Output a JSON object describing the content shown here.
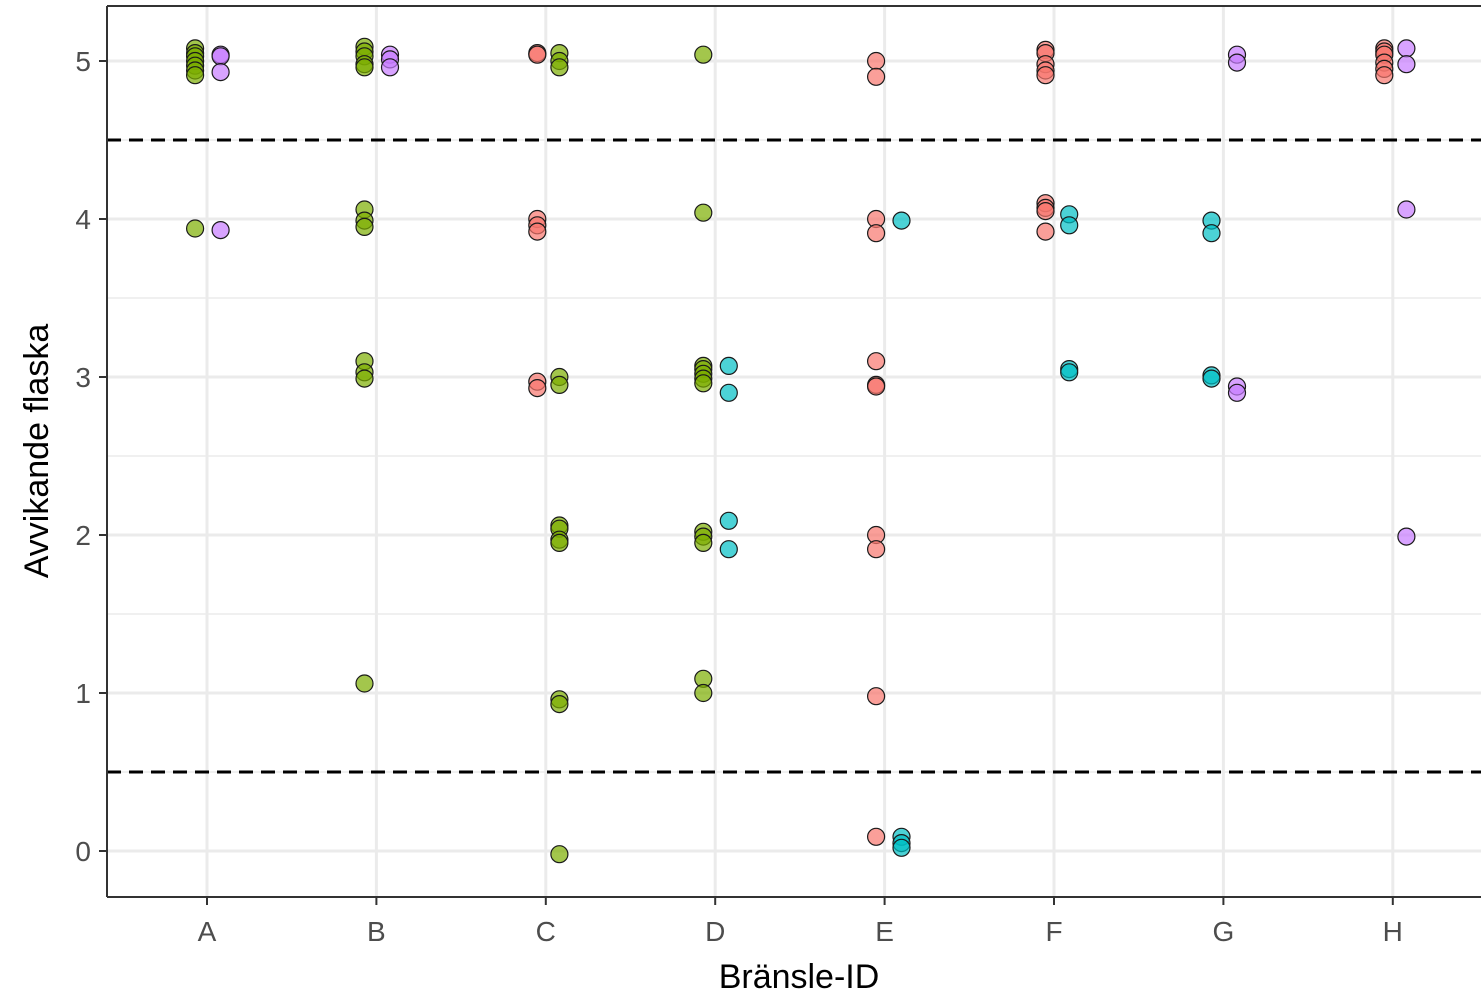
{
  "chart_data": {
    "type": "scatter",
    "title": "",
    "xlabel": "Bränsle-ID",
    "ylabel": "Avvikande flaska",
    "categories": [
      "A",
      "B",
      "C",
      "D",
      "E",
      "F",
      "G",
      "H"
    ],
    "ylim": [
      -0.28,
      5.36
    ],
    "y_ticks": [
      0,
      1,
      2,
      3,
      4,
      5
    ],
    "y_tick_labels": [
      "0",
      "1",
      "2",
      "3",
      "4",
      "5"
    ],
    "grid": true,
    "legend": "none",
    "reference_lines": [
      {
        "y": 4.5,
        "style": "dashed",
        "color": "#000000"
      },
      {
        "y": 0.5,
        "style": "dashed",
        "color": "#000000"
      }
    ],
    "colors": {
      "red": "#F8766D",
      "green": "#7CAE00",
      "cyan": "#00BFC4",
      "purple": "#C77CFF"
    },
    "series": [
      {
        "color_key": "red",
        "points": [
          [
            "C",
            -0.05,
            5.05
          ],
          [
            "C",
            -0.05,
            5.04
          ],
          [
            "C",
            -0.05,
            4.0
          ],
          [
            "C",
            -0.05,
            3.96
          ],
          [
            "C",
            -0.05,
            3.92
          ],
          [
            "C",
            -0.05,
            2.97
          ],
          [
            "C",
            -0.05,
            2.93
          ],
          [
            "E",
            -0.05,
            5.0
          ],
          [
            "E",
            -0.05,
            4.9
          ],
          [
            "E",
            -0.05,
            4.0
          ],
          [
            "E",
            -0.05,
            3.91
          ],
          [
            "E",
            -0.05,
            3.1
          ],
          [
            "E",
            -0.05,
            2.95
          ],
          [
            "E",
            -0.05,
            2.94
          ],
          [
            "E",
            -0.05,
            2.0
          ],
          [
            "E",
            -0.05,
            1.91
          ],
          [
            "E",
            -0.05,
            0.98
          ],
          [
            "E",
            -0.05,
            0.09
          ],
          [
            "F",
            -0.05,
            5.07
          ],
          [
            "F",
            -0.05,
            5.05
          ],
          [
            "F",
            -0.05,
            4.98
          ],
          [
            "F",
            -0.05,
            4.94
          ],
          [
            "F",
            -0.05,
            4.91
          ],
          [
            "F",
            -0.05,
            4.1
          ],
          [
            "F",
            -0.05,
            4.07
          ],
          [
            "F",
            -0.05,
            4.05
          ],
          [
            "F",
            -0.05,
            3.92
          ],
          [
            "H",
            -0.05,
            5.08
          ],
          [
            "H",
            -0.05,
            5.06
          ],
          [
            "H",
            -0.05,
            5.04
          ],
          [
            "H",
            -0.05,
            4.99
          ],
          [
            "H",
            -0.05,
            4.95
          ],
          [
            "H",
            -0.05,
            4.91
          ]
        ]
      },
      {
        "color_key": "green",
        "points": [
          [
            "A",
            -0.07,
            5.08
          ],
          [
            "A",
            -0.07,
            5.05
          ],
          [
            "A",
            -0.07,
            5.03
          ],
          [
            "A",
            -0.07,
            5.0
          ],
          [
            "A",
            -0.07,
            4.97
          ],
          [
            "A",
            -0.07,
            4.94
          ],
          [
            "A",
            -0.07,
            4.91
          ],
          [
            "A",
            -0.07,
            3.94
          ],
          [
            "B",
            -0.07,
            5.09
          ],
          [
            "B",
            -0.07,
            5.06
          ],
          [
            "B",
            -0.07,
            5.03
          ],
          [
            "B",
            -0.07,
            4.98
          ],
          [
            "B",
            -0.07,
            4.96
          ],
          [
            "B",
            -0.07,
            4.06
          ],
          [
            "B",
            -0.07,
            3.99
          ],
          [
            "B",
            -0.07,
            3.95
          ],
          [
            "B",
            -0.07,
            3.1
          ],
          [
            "B",
            -0.07,
            3.03
          ],
          [
            "B",
            -0.07,
            2.99
          ],
          [
            "B",
            -0.07,
            1.06
          ],
          [
            "C",
            0.08,
            5.05
          ],
          [
            "C",
            0.08,
            5.0
          ],
          [
            "C",
            0.08,
            4.96
          ],
          [
            "C",
            0.08,
            3.0
          ],
          [
            "C",
            0.08,
            2.95
          ],
          [
            "C",
            0.08,
            2.06
          ],
          [
            "C",
            0.08,
            2.04
          ],
          [
            "C",
            0.08,
            1.97
          ],
          [
            "C",
            0.08,
            1.95
          ],
          [
            "C",
            0.08,
            0.96
          ],
          [
            "C",
            0.08,
            0.93
          ],
          [
            "C",
            0.08,
            -0.02
          ],
          [
            "D",
            -0.07,
            5.04
          ],
          [
            "D",
            -0.07,
            4.04
          ],
          [
            "D",
            -0.07,
            3.07
          ],
          [
            "D",
            -0.07,
            3.05
          ],
          [
            "D",
            -0.07,
            3.02
          ],
          [
            "D",
            -0.07,
            2.99
          ],
          [
            "D",
            -0.07,
            2.96
          ],
          [
            "D",
            -0.07,
            2.02
          ],
          [
            "D",
            -0.07,
            1.99
          ],
          [
            "D",
            -0.07,
            1.95
          ],
          [
            "D",
            -0.07,
            1.09
          ],
          [
            "D",
            -0.07,
            1.0
          ]
        ]
      },
      {
        "color_key": "cyan",
        "points": [
          [
            "D",
            0.08,
            3.07
          ],
          [
            "D",
            0.08,
            2.9
          ],
          [
            "D",
            0.08,
            2.09
          ],
          [
            "D",
            0.08,
            1.91
          ],
          [
            "E",
            0.1,
            3.99
          ],
          [
            "E",
            0.1,
            0.09
          ],
          [
            "E",
            0.1,
            0.05
          ],
          [
            "E",
            0.1,
            0.02
          ],
          [
            "F",
            0.09,
            4.03
          ],
          [
            "F",
            0.09,
            3.96
          ],
          [
            "F",
            0.09,
            3.05
          ],
          [
            "F",
            0.09,
            3.03
          ],
          [
            "G",
            -0.07,
            3.99
          ],
          [
            "G",
            -0.07,
            3.91
          ],
          [
            "G",
            -0.07,
            3.01
          ],
          [
            "G",
            -0.07,
            2.99
          ]
        ]
      },
      {
        "color_key": "purple",
        "points": [
          [
            "A",
            0.08,
            5.04
          ],
          [
            "A",
            0.08,
            5.03
          ],
          [
            "A",
            0.08,
            4.93
          ],
          [
            "A",
            0.08,
            3.93
          ],
          [
            "B",
            0.08,
            5.04
          ],
          [
            "B",
            0.08,
            5.01
          ],
          [
            "B",
            0.08,
            4.96
          ],
          [
            "G",
            0.08,
            5.04
          ],
          [
            "G",
            0.08,
            4.99
          ],
          [
            "G",
            0.08,
            2.94
          ],
          [
            "G",
            0.08,
            2.9
          ],
          [
            "H",
            0.08,
            5.08
          ],
          [
            "H",
            0.08,
            4.98
          ],
          [
            "H",
            0.08,
            4.06
          ],
          [
            "H",
            0.08,
            1.99
          ]
        ]
      }
    ]
  }
}
